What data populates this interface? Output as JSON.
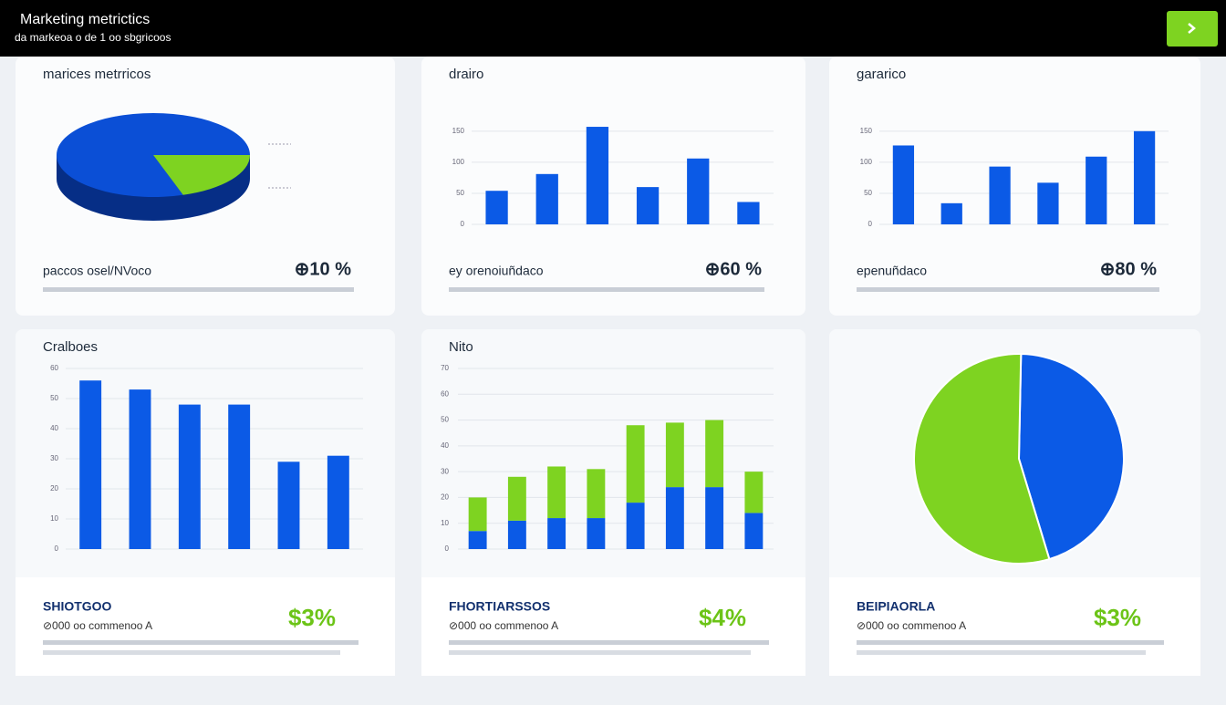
{
  "header": {
    "title": "Marketing metrictics",
    "subtitle": "da markeoa o de 1 oo sbgricoos"
  },
  "panels": [
    {
      "chart_data": {
        "type": "pie3d",
        "title": "marices metrricos",
        "values": [
          80,
          20
        ],
        "colors": [
          "#0b4fd6",
          "#7ed321"
        ]
      },
      "footer": {
        "label": "paccos osel/NVoco",
        "value": "⊕10 %"
      }
    },
    {
      "chart_data": {
        "type": "bar",
        "title": "drairo",
        "values": [
          54,
          81,
          157,
          60,
          106,
          36
        ],
        "color": "#0b5ae6",
        "ylim": [
          0,
          160
        ],
        "yticks": [
          0,
          50,
          100,
          150
        ],
        "grid": true
      },
      "footer": {
        "label": "ey orenoiuñdaco",
        "value": "⊕60 %"
      }
    },
    {
      "chart_data": {
        "type": "bar",
        "title": "gararico",
        "values": [
          127,
          34,
          93,
          67,
          109,
          150
        ],
        "color": "#0b5ae6",
        "ylim": [
          0,
          160
        ],
        "yticks": [
          0,
          50,
          100,
          150
        ],
        "grid": true
      },
      "footer": {
        "label": "epenuñdaco",
        "value": "⊕80 %"
      }
    },
    {
      "chart_data": {
        "type": "bar",
        "title": "Cralboes",
        "values": [
          56,
          53,
          48,
          48,
          29,
          31
        ],
        "color": "#0b5ae6",
        "ylim": [
          0,
          60
        ],
        "yticks": [
          0,
          10,
          20,
          30,
          40,
          50,
          60
        ],
        "grid": true
      },
      "footer": {
        "label": "SHIOTGOO",
        "note": "⊘000 oo commenoo A",
        "value": "$3%"
      }
    },
    {
      "chart_data": {
        "type": "stacked",
        "title": "Nito",
        "series": [
          {
            "color": "#0b5ae6",
            "values": [
              7,
              11,
              12,
              12,
              18,
              24,
              24,
              14
            ]
          },
          {
            "color": "#7ed321",
            "values": [
              13,
              17,
              20,
              19,
              30,
              25,
              26,
              16
            ]
          }
        ],
        "ylim": [
          0,
          70
        ],
        "yticks": [
          0,
          10,
          20,
          30,
          40,
          50,
          60,
          70
        ],
        "grid": true
      },
      "footer": {
        "label": "FHORTIARSSOS",
        "note": "⊘000 oo commenoo A",
        "value": "$4%"
      }
    },
    {
      "chart_data": {
        "type": "pie",
        "values": [
          45,
          55
        ],
        "colors": [
          "#0b5ae6",
          "#7ed321"
        ]
      },
      "footer": {
        "label": "BEIPIAORLA",
        "note": "⊘000 oo commenoo A",
        "value": "$3%"
      }
    }
  ]
}
